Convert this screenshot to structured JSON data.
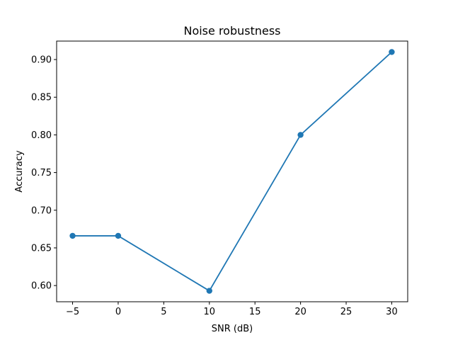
{
  "chart_data": {
    "type": "line",
    "title": "Noise robustness",
    "xlabel": "SNR (dB)",
    "ylabel": "Accuracy",
    "x": [
      -5,
      0,
      10,
      20,
      30
    ],
    "series": [
      {
        "values": [
          0.666,
          0.666,
          0.593,
          0.8,
          0.91
        ],
        "color": "#1f77b4",
        "marker": "circle"
      }
    ],
    "xlim": [
      -6.75,
      31.75
    ],
    "ylim": [
      0.5785,
      0.9245
    ],
    "xticks": [
      -5,
      0,
      5,
      10,
      15,
      20,
      25,
      30
    ],
    "xtick_labels": [
      "−5",
      "0",
      "5",
      "10",
      "15",
      "20",
      "25",
      "30"
    ],
    "yticks": [
      0.6,
      0.65,
      0.7,
      0.75,
      0.8,
      0.85,
      0.9
    ],
    "ytick_labels": [
      "0.60",
      "0.65",
      "0.70",
      "0.75",
      "0.80",
      "0.85",
      "0.90"
    ],
    "grid": false,
    "legend": "none"
  }
}
